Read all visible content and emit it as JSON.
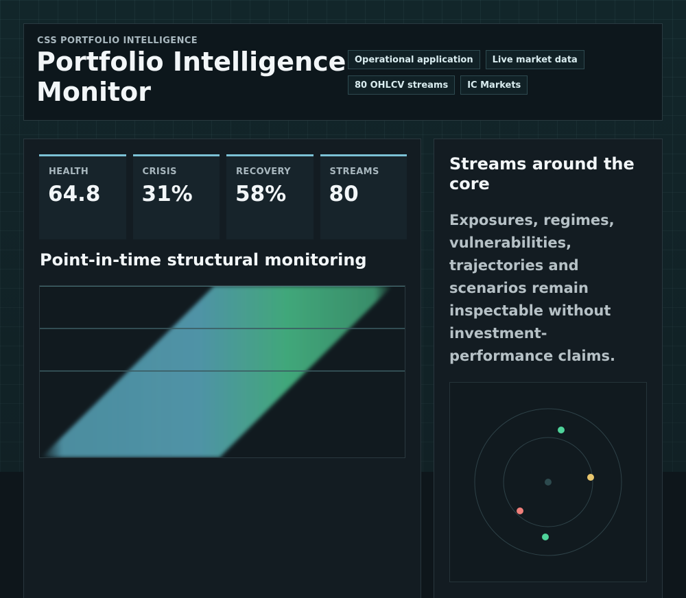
{
  "header": {
    "eyebrow": "CSS PORTFOLIO INTELLIGENCE",
    "title": "Portfolio Intelligence Monitor",
    "chips": [
      "Operational application",
      "Live market data",
      "80 OHLCV streams",
      "IC Markets"
    ]
  },
  "metrics": [
    {
      "label": "HEALTH",
      "value": "64.8"
    },
    {
      "label": "CRISIS",
      "value": "31%"
    },
    {
      "label": "RECOVERY",
      "value": "58%"
    },
    {
      "label": "STREAMS",
      "value": "80"
    }
  ],
  "monitor": {
    "title": "Point-in-time structural monitoring"
  },
  "side": {
    "title": "Streams around the core",
    "body": "Exposures, regimes, vulnerabilities, trajectories and scenarios remain inspectable without investment-performance claims."
  },
  "orbit": {
    "nodes": [
      {
        "name": "node-green-top",
        "color": "#4fd39a"
      },
      {
        "name": "node-amber-right",
        "color": "#e8c66e"
      },
      {
        "name": "node-red-left",
        "color": "#ef7f7a"
      },
      {
        "name": "node-green-bottom",
        "color": "#4fd39a"
      }
    ],
    "core_color": "#2d4a4e"
  },
  "colors": {
    "accent": "#7cc2d6",
    "band_start": "#4f93a6",
    "band_end": "#41a77a"
  }
}
